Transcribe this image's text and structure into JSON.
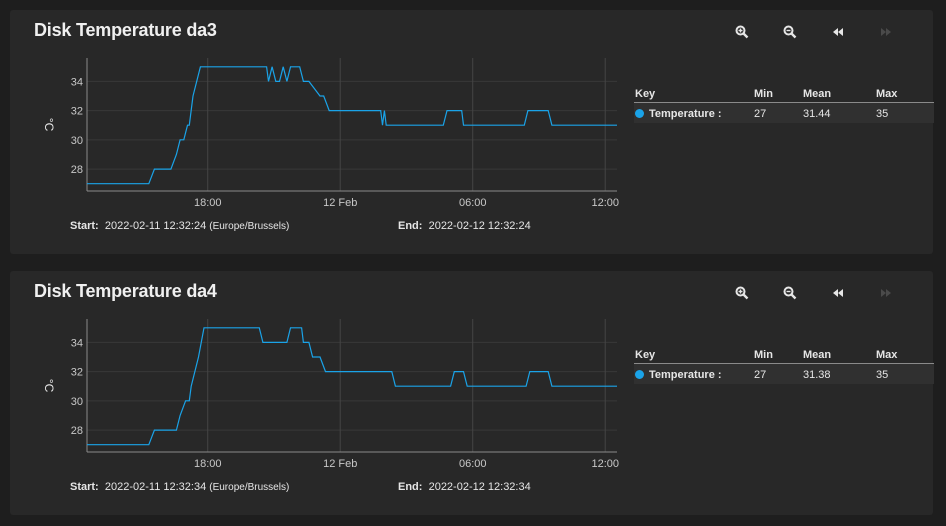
{
  "cards": [
    {
      "title": "Disk Temperature da3",
      "start_label": "Start:",
      "start_value": "2022-02-11 12:32:24",
      "timezone": "(Europe/Brussels)",
      "end_label": "End:",
      "end_value": "2022-02-12 12:32:24",
      "legend": {
        "headers": {
          "key": "Key",
          "min": "Min",
          "mean": "Mean",
          "max": "Max"
        },
        "rows": [
          {
            "name": "Temperature :",
            "min": "27",
            "mean": "31.44",
            "max": "35"
          }
        ]
      }
    },
    {
      "title": "Disk Temperature da4",
      "start_label": "Start:",
      "start_value": "2022-02-11 12:32:34",
      "timezone": "(Europe/Brussels)",
      "end_label": "End:",
      "end_value": "2022-02-12 12:32:34",
      "legend": {
        "headers": {
          "key": "Key",
          "min": "Min",
          "mean": "Mean",
          "max": "Max"
        },
        "rows": [
          {
            "name": "Temperature :",
            "min": "27",
            "mean": "31.38",
            "max": "35"
          }
        ]
      }
    }
  ],
  "toolbar_icons": [
    "zoom-in-icon",
    "zoom-out-icon",
    "rewind-icon",
    "fast-forward-icon"
  ],
  "colors": {
    "series": "#1aa3e8",
    "card": "#282828",
    "background": "#1e1e1e"
  },
  "chart_data": [
    {
      "type": "line",
      "ylabel": "°C",
      "ylim": [
        26.5,
        35.6
      ],
      "yticks": [
        28,
        30,
        32,
        34
      ],
      "xlim": [
        "2022-02-11T12:32",
        "2022-02-12T12:32"
      ],
      "xticks": [
        {
          "label": "18:00",
          "at": "2022-02-11T18:00"
        },
        {
          "label": "12 Feb",
          "at": "2022-02-12T00:00"
        },
        {
          "label": "06:00",
          "at": "2022-02-12T06:00"
        },
        {
          "label": "12:00",
          "at": "2022-02-12T12:00"
        }
      ],
      "grid": true,
      "series": [
        {
          "x": [
            "2022-02-11T12:32",
            "2022-02-11T15:20",
            "2022-02-11T15:35",
            "2022-02-11T16:20",
            "2022-02-11T16:35",
            "2022-02-11T16:45",
            "2022-02-11T16:55",
            "2022-02-11T17:05",
            "2022-02-11T17:10",
            "2022-02-11T17:20",
            "2022-02-11T17:40",
            "2022-02-11T20:40",
            "2022-02-11T20:45",
            "2022-02-11T20:55",
            "2022-02-11T21:05",
            "2022-02-11T21:15",
            "2022-02-11T21:25",
            "2022-02-11T21:35",
            "2022-02-11T21:45",
            "2022-02-11T22:10",
            "2022-02-11T22:20",
            "2022-02-11T22:35",
            "2022-02-11T23:05",
            "2022-02-11T23:15",
            "2022-02-11T23:30",
            "2022-02-11T23:35",
            "2022-02-11T23:40",
            "2022-02-12T01:50",
            "2022-02-12T01:55",
            "2022-02-12T02:00",
            "2022-02-12T02:05",
            "2022-02-12T02:15",
            "2022-02-12T02:20",
            "2022-02-12T04:40",
            "2022-02-12T04:50",
            "2022-02-12T05:30",
            "2022-02-12T05:35",
            "2022-02-12T06:00",
            "2022-02-12T08:20",
            "2022-02-12T08:30",
            "2022-02-12T09:25",
            "2022-02-12T09:35",
            "2022-02-12T12:32"
          ],
          "y": [
            27,
            27,
            28,
            28,
            29,
            30,
            30,
            31,
            31,
            33,
            35,
            35,
            34,
            35,
            34,
            34,
            35,
            34,
            35,
            35,
            34,
            34,
            33,
            33,
            32,
            32,
            32,
            32,
            31,
            32,
            31,
            31,
            31,
            31,
            32,
            32,
            31,
            31,
            31,
            32,
            32,
            31,
            31
          ]
        }
      ]
    },
    {
      "type": "line",
      "ylabel": "°C",
      "ylim": [
        26.5,
        35.6
      ],
      "yticks": [
        28,
        30,
        32,
        34
      ],
      "xlim": [
        "2022-02-11T12:32",
        "2022-02-12T12:32"
      ],
      "xticks": [
        {
          "label": "18:00",
          "at": "2022-02-11T18:00"
        },
        {
          "label": "12 Feb",
          "at": "2022-02-12T00:00"
        },
        {
          "label": "06:00",
          "at": "2022-02-12T06:00"
        },
        {
          "label": "12:00",
          "at": "2022-02-12T12:00"
        }
      ],
      "grid": true,
      "series": [
        {
          "x": [
            "2022-02-11T12:32",
            "2022-02-11T15:20",
            "2022-02-11T15:35",
            "2022-02-11T16:35",
            "2022-02-11T16:45",
            "2022-02-11T17:00",
            "2022-02-11T17:10",
            "2022-02-11T17:15",
            "2022-02-11T17:35",
            "2022-02-11T17:50",
            "2022-02-11T20:20",
            "2022-02-11T20:30",
            "2022-02-11T20:40",
            "2022-02-11T21:35",
            "2022-02-11T21:45",
            "2022-02-11T22:15",
            "2022-02-11T22:20",
            "2022-02-11T22:35",
            "2022-02-11T22:45",
            "2022-02-11T23:05",
            "2022-02-11T23:20",
            "2022-02-11T23:25",
            "2022-02-12T02:20",
            "2022-02-12T02:30",
            "2022-02-12T05:00",
            "2022-02-12T05:10",
            "2022-02-12T05:35",
            "2022-02-12T05:45",
            "2022-02-12T08:25",
            "2022-02-12T08:35",
            "2022-02-12T09:25",
            "2022-02-12T09:35",
            "2022-02-12T12:32"
          ],
          "y": [
            27,
            27,
            28,
            28,
            29,
            30,
            30,
            31,
            33,
            35,
            35,
            34,
            34,
            34,
            35,
            35,
            34,
            34,
            33,
            33,
            32,
            32,
            32,
            31,
            31,
            32,
            32,
            31,
            31,
            32,
            32,
            31,
            31
          ]
        }
      ]
    }
  ]
}
